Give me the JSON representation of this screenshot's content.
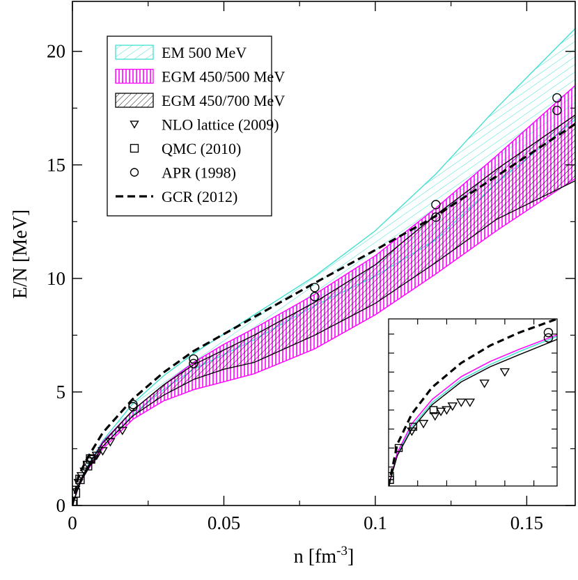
{
  "chart_data": {
    "type": "line",
    "xlabel": "n [fm",
    "xlabel_exp": "-3",
    "xlabel_close": "]",
    "ylabel": "E/N [MeV]",
    "xlim": [
      0,
      0.166
    ],
    "ylim": [
      0,
      22.2
    ],
    "x_ticks": [
      0,
      0.05,
      0.1,
      0.15
    ],
    "x_tick_labels": [
      "0",
      "0.05",
      "0.1",
      "0.15"
    ],
    "y_ticks": [
      0,
      5,
      10,
      15,
      20
    ],
    "y_tick_labels": [
      "0",
      "5",
      "10",
      "15",
      "20"
    ],
    "grid": false,
    "legend_position": "top-left",
    "legend": [
      {
        "label": "EM 500 MeV",
        "kind": "band-diag",
        "color": "#40e0d0"
      },
      {
        "label": "EGM 450/500 MeV",
        "kind": "band-vert",
        "color": "#ff00ff"
      },
      {
        "label": "EGM 450/700 MeV",
        "kind": "band-diag",
        "color": "#000000"
      },
      {
        "label": "NLO lattice (2009)",
        "kind": "triangle",
        "color": "#000000"
      },
      {
        "label": "QMC (2010)",
        "kind": "square",
        "color": "#000000"
      },
      {
        "label": "APR (1998)",
        "kind": "circle",
        "color": "#000000"
      },
      {
        "label": "GCR (2012)",
        "kind": "dashed",
        "color": "#000000"
      }
    ],
    "bands": [
      {
        "name": "EM 500 MeV",
        "color": "#40e0d0",
        "hatch": "diagonal",
        "x": [
          0.0,
          0.0025,
          0.005,
          0.01,
          0.02,
          0.03,
          0.04,
          0.06,
          0.08,
          0.1,
          0.12,
          0.14,
          0.166
        ],
        "lower": [
          0.0,
          1.0,
          1.6,
          2.6,
          4.0,
          5.1,
          6.0,
          7.3,
          8.8,
          10.1,
          11.7,
          14.2,
          17.0
        ],
        "upper": [
          0.0,
          1.1,
          1.75,
          2.85,
          4.5,
          5.7,
          6.7,
          8.4,
          10.1,
          12.1,
          14.6,
          17.5,
          21.0
        ]
      },
      {
        "name": "EGM 450/500 MeV",
        "color": "#ff00ff",
        "hatch": "vertical",
        "x": [
          0.0,
          0.0025,
          0.005,
          0.01,
          0.02,
          0.03,
          0.04,
          0.05,
          0.06,
          0.08,
          0.1,
          0.12,
          0.14,
          0.166
        ],
        "lower": [
          0.0,
          1.0,
          1.55,
          2.5,
          3.8,
          4.6,
          5.1,
          5.45,
          5.8,
          6.9,
          8.4,
          10.2,
          12.1,
          14.4
        ],
        "upper": [
          0.0,
          1.1,
          1.7,
          2.8,
          4.2,
          5.3,
          6.3,
          7.1,
          7.8,
          9.3,
          11.0,
          13.1,
          15.4,
          18.5
        ]
      },
      {
        "name": "EGM 450/700 MeV",
        "color": "#000000",
        "hatch": "diagonal",
        "x": [
          0.0,
          0.0025,
          0.005,
          0.01,
          0.02,
          0.03,
          0.04,
          0.05,
          0.06,
          0.08,
          0.1,
          0.12,
          0.14,
          0.166
        ],
        "lower": [
          0.0,
          1.02,
          1.6,
          2.6,
          3.95,
          4.85,
          5.55,
          6.0,
          6.3,
          7.5,
          8.9,
          10.7,
          12.6,
          14.3
        ],
        "upper": [
          0.0,
          1.08,
          1.7,
          2.75,
          4.2,
          5.3,
          6.2,
          6.85,
          7.5,
          8.95,
          10.6,
          12.8,
          14.8,
          17.2
        ]
      }
    ],
    "series": [
      {
        "name": "GCR (2012)",
        "style": "dashed",
        "x": [
          0.0,
          0.002,
          0.005,
          0.01,
          0.02,
          0.03,
          0.04,
          0.06,
          0.08,
          0.1,
          0.12,
          0.14,
          0.166
        ],
        "y": [
          0.0,
          1.3,
          2.1,
          3.2,
          4.7,
          5.85,
          6.8,
          8.3,
          9.8,
          11.25,
          12.75,
          14.5,
          16.8
        ]
      },
      {
        "name": "NLO lattice (2009)",
        "marker": "triangle",
        "x": [
          0.001,
          0.002,
          0.003,
          0.004,
          0.005,
          0.006,
          0.007,
          0.008,
          0.01,
          0.0125,
          0.0165
        ],
        "y": [
          0.7,
          1.0,
          1.3,
          1.5,
          1.8,
          1.95,
          2.05,
          2.2,
          2.4,
          2.8,
          3.3
        ]
      },
      {
        "name": "QMC (2010)",
        "marker": "square",
        "x": [
          0.0,
          0.0002,
          0.001,
          0.0025,
          0.005,
          0.006
        ],
        "y": [
          0.05,
          0.15,
          0.55,
          1.15,
          1.75,
          2.05
        ]
      },
      {
        "name": "APR (1998)",
        "marker": "circle",
        "x": [
          0.02,
          0.02,
          0.04,
          0.04,
          0.08,
          0.08,
          0.12,
          0.12,
          0.16,
          0.16
        ],
        "y": [
          4.35,
          4.45,
          6.25,
          6.45,
          9.2,
          9.6,
          12.7,
          13.25,
          17.4,
          17.95
        ]
      }
    ],
    "inset": {
      "xlim": [
        0,
        0.0058
      ],
      "ylim": [
        0,
        2.2
      ],
      "x_ticks": [
        0.001,
        0.002,
        0.003,
        0.004,
        0.005
      ],
      "y_ticks": [
        0.25,
        0.5,
        0.75,
        1.0,
        1.25,
        1.5,
        1.75,
        2.0
      ],
      "tick_labels_shown": false,
      "gcr": {
        "x": [
          0.0,
          0.0003,
          0.0008,
          0.0015,
          0.0025,
          0.0035,
          0.0045,
          0.0058
        ],
        "y": [
          0.0,
          0.55,
          0.95,
          1.3,
          1.62,
          1.85,
          2.02,
          2.2
        ]
      },
      "band_lines": [
        {
          "color": "#40e0d0",
          "x": [
            0.0,
            0.0003,
            0.0008,
            0.0015,
            0.0025,
            0.0035,
            0.0045,
            0.0058
          ],
          "y": [
            0.0,
            0.42,
            0.78,
            1.1,
            1.4,
            1.6,
            1.77,
            1.97
          ]
        },
        {
          "color": "#ff00ff",
          "x": [
            0.0,
            0.0003,
            0.0008,
            0.0015,
            0.0025,
            0.0035,
            0.0045,
            0.0058
          ],
          "y": [
            0.0,
            0.44,
            0.82,
            1.14,
            1.44,
            1.64,
            1.8,
            1.99
          ]
        },
        {
          "color": "#000000",
          "x": [
            0.0,
            0.0003,
            0.0008,
            0.0015,
            0.0025,
            0.0035,
            0.0045,
            0.0058
          ],
          "y": [
            0.0,
            0.4,
            0.75,
            1.07,
            1.37,
            1.57,
            1.73,
            1.93
          ]
        }
      ],
      "triangles": {
        "x": [
          0.0008,
          0.0012,
          0.0016,
          0.0018,
          0.002,
          0.0022,
          0.0025,
          0.0028,
          0.0033,
          0.004
        ],
        "y": [
          0.72,
          0.82,
          0.92,
          0.98,
          1.0,
          1.05,
          1.1,
          1.1,
          1.35,
          1.5
        ]
      },
      "squares": {
        "x": [
          0.0,
          0.0,
          0.0003,
          0.0008,
          0.0015
        ],
        "y": [
          0.08,
          0.13,
          0.5,
          0.78,
          1.0
        ]
      },
      "circles": {
        "x": [
          0.0055,
          0.0055
        ],
        "y": [
          1.95,
          2.02
        ]
      }
    }
  }
}
